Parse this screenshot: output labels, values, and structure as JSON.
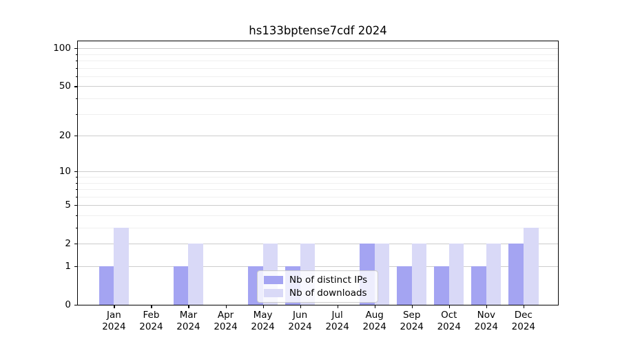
{
  "chart_data": {
    "type": "bar",
    "title": "hs133bptense7cdf 2024",
    "months": [
      "Jan",
      "Feb",
      "Mar",
      "Apr",
      "May",
      "Jun",
      "Jul",
      "Aug",
      "Sep",
      "Oct",
      "Nov",
      "Dec"
    ],
    "year": "2024",
    "series": [
      {
        "name": "Nb of distinct IPs",
        "color": "#a4a4f2",
        "values": [
          1,
          0,
          1,
          0,
          1,
          1,
          0,
          2,
          1,
          1,
          1,
          2
        ]
      },
      {
        "name": "Nb of downloads",
        "color": "#d9d9f7",
        "values": [
          3,
          0,
          2,
          0,
          2,
          2,
          0,
          2,
          2,
          2,
          2,
          3
        ]
      }
    ],
    "y_ticks": [
      0,
      1,
      2,
      5,
      10,
      20,
      50,
      100
    ],
    "y_minor_ticks": [
      3,
      4,
      6,
      7,
      8,
      9,
      30,
      40,
      60,
      70,
      80,
      90
    ],
    "scale": "log1p",
    "ylim": [
      0,
      113
    ],
    "grid": "horizontal-major-and-minor",
    "legend_position": "lower-center"
  }
}
